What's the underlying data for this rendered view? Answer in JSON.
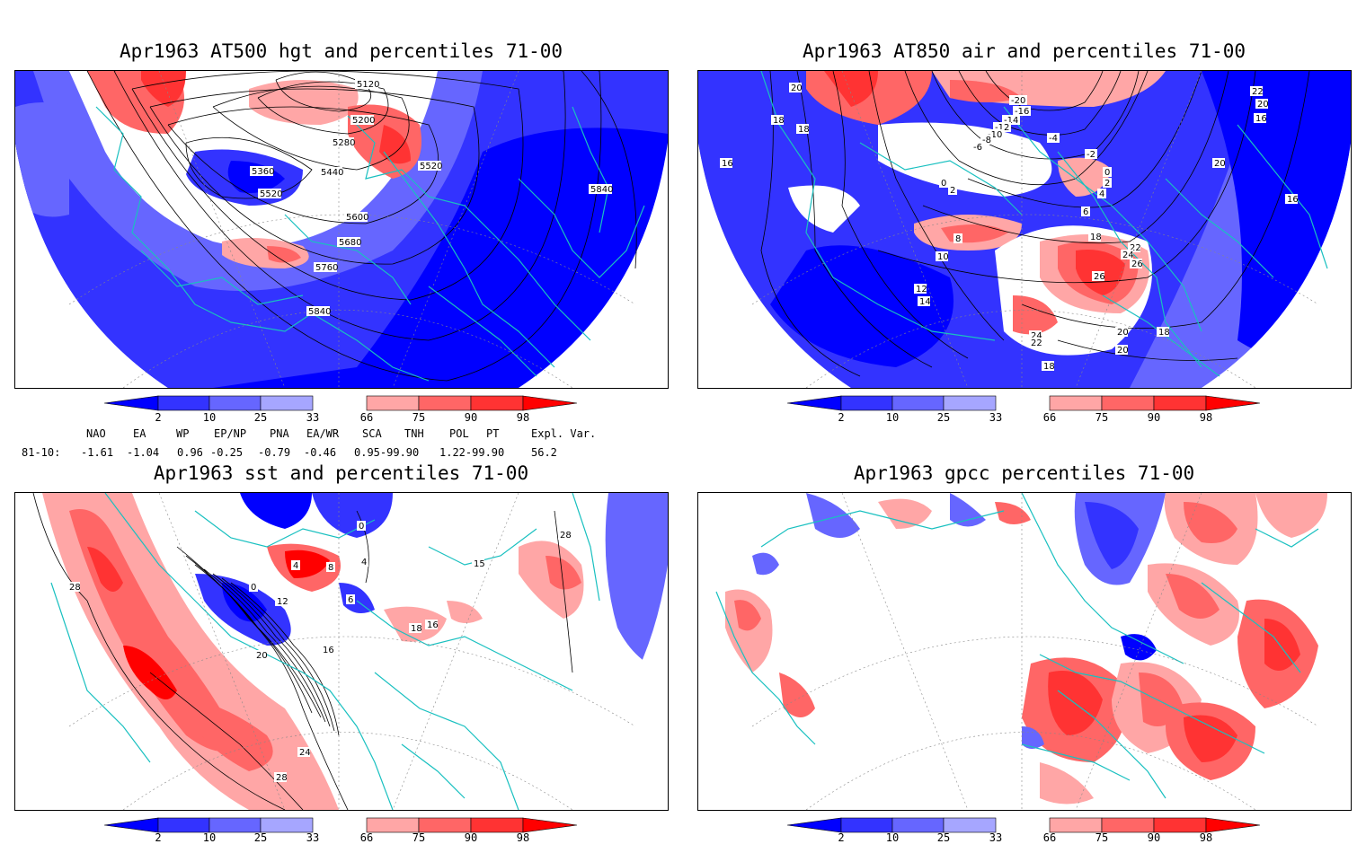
{
  "panels": {
    "hgt500": {
      "title": "Apr1963 AT500 hgt and percentiles 71-00",
      "contour_labels": [
        "5120",
        "5200",
        "5280",
        "5360",
        "5440",
        "5520",
        "5520",
        "5600",
        "5680",
        "5760",
        "5840",
        "5840"
      ]
    },
    "air850": {
      "title": "Apr1963 AT850 air and percentiles 71-00",
      "contour_labels": [
        "20",
        "18",
        "18",
        "16",
        "-20",
        "-16",
        "-14",
        "-12",
        "-10",
        "-8",
        "-6",
        "-4",
        "-2",
        "0",
        "0",
        "2",
        "2",
        "4",
        "6",
        "8",
        "10",
        "12",
        "14",
        "18",
        "22",
        "24",
        "26",
        "26",
        "24",
        "22",
        "20",
        "20",
        "18",
        "18",
        "20",
        "22",
        "20",
        "16",
        "16"
      ]
    },
    "sst": {
      "title": "Apr1963 sst and percentiles 71-00",
      "contour_labels": [
        "28",
        "0",
        "4",
        "8",
        "4",
        "6",
        "0",
        "12",
        "16",
        "16",
        "18",
        "15",
        "20",
        "24",
        "28",
        "28"
      ]
    },
    "gpcc": {
      "title": "Apr1963 gpcc percentiles 71-00"
    }
  },
  "colorbar": {
    "labels": [
      "2",
      "10",
      "25",
      "33",
      "66",
      "75",
      "90",
      "98"
    ],
    "colors": {
      "lt2": "#0000ff",
      "b2_10": "#3333ff",
      "b10_25": "#6666ff",
      "b25_33": "#a6a6ff",
      "r66_75": "#ffa6a6",
      "r75_90": "#ff6666",
      "r90_98": "#ff3333",
      "gt98": "#ff0000"
    }
  },
  "teleconnections": {
    "header": [
      "NAO",
      "EA",
      "WP",
      "EP/NP",
      "PNA",
      "EA/WR",
      "SCA",
      "TNH",
      "POL",
      "PT",
      "Expl. Var."
    ],
    "row_label": "81-10:",
    "values": [
      "-1.61",
      "-1.04",
      "0.96",
      "-0.25",
      "-0.79",
      "-0.46",
      "0.95-99.90",
      "1.22-99.90",
      "56.2"
    ]
  },
  "colors": {
    "coastline": "#19c0c0",
    "grid": "#888888",
    "contour": "#000000"
  }
}
